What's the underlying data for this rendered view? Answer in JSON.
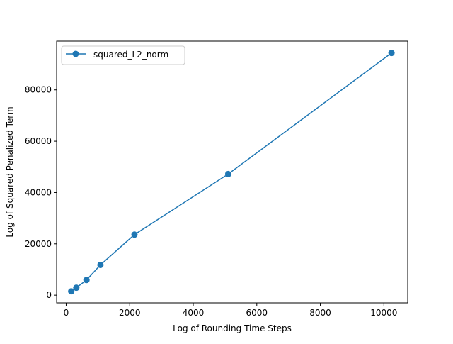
{
  "chart_data": {
    "type": "line",
    "title": "",
    "xlabel": "Log of Rounding Time Steps",
    "ylabel": "Log of Squared Penalized Term",
    "xlim": [
      -300,
      10750
    ],
    "ylim": [
      -3000,
      99000
    ],
    "xticks": [
      0,
      2000,
      4000,
      6000,
      8000,
      10000
    ],
    "yticks": [
      0,
      20000,
      40000,
      60000,
      80000
    ],
    "grid": false,
    "legend_position": "top-left",
    "series": [
      {
        "name": "squared_L2_norm",
        "color": "#1f77b4",
        "marker": "circle",
        "x": [
          160,
          320,
          640,
          1080,
          2150,
          5100,
          10240
        ],
        "y": [
          1500,
          2900,
          5900,
          11800,
          23600,
          47200,
          94400
        ]
      }
    ]
  }
}
